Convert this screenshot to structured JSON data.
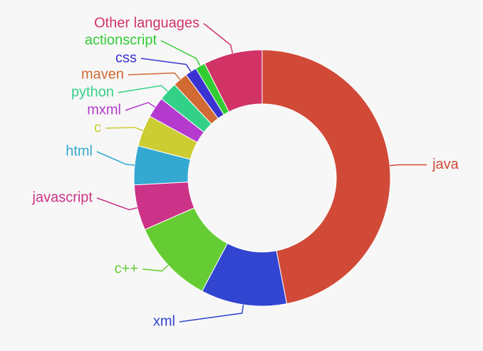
{
  "chart_data": {
    "type": "pie",
    "donut": true,
    "legend": "none",
    "start": "top",
    "direction": "clockwise",
    "slices": [
      {
        "label": "java",
        "value": 45.0,
        "color": "#d14a38"
      },
      {
        "label": "xml",
        "value": 10.4,
        "color": "#3145d1"
      },
      {
        "label": "c++",
        "value": 10.2,
        "color": "#66cc33"
      },
      {
        "label": "javascript",
        "value": 5.5,
        "color": "#cc3388"
      },
      {
        "label": "html",
        "value": 4.7,
        "color": "#33a8d1"
      },
      {
        "label": "c",
        "value": 3.8,
        "color": "#cccc33"
      },
      {
        "label": "mxml",
        "value": 2.5,
        "color": "#b33acc"
      },
      {
        "label": "python",
        "value": 2.3,
        "color": "#33d188"
      },
      {
        "label": "maven",
        "value": 1.8,
        "color": "#d16a33"
      },
      {
        "label": "css",
        "value": 1.4,
        "color": "#3b33d1"
      },
      {
        "label": "actionscript",
        "value": 1.2,
        "color": "#33cc33"
      },
      {
        "label": "Other languages",
        "value": 7.1,
        "color": "#d13366"
      }
    ]
  }
}
